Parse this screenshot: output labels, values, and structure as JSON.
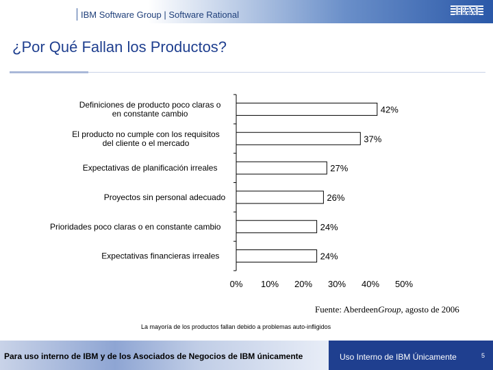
{
  "header": {
    "text": "IBM Software Group | Software Rational",
    "logo": "IBM"
  },
  "slide": {
    "title": "¿Por Qué Fallan los Productos?"
  },
  "chart_data": {
    "type": "bar",
    "orientation": "horizontal",
    "categories": [
      "Definiciones de producto poco claras o en constante cambio",
      "El producto no cumple con los requisitos del cliente o el mercado",
      "Expectativas de planificación irreales",
      "Proyectos sin personal adecuado",
      "Prioridades poco claras o en constante cambio",
      "Expectativas financieras irreales"
    ],
    "category_lines": [
      [
        "Definiciones de producto poco claras o",
        "en constante cambio"
      ],
      [
        "El producto no cumple con los requisitos",
        "del cliente o el mercado"
      ],
      [
        "Expectativas de planificación irreales"
      ],
      [
        "Proyectos sin personal adecuado"
      ],
      [
        "Prioridades poco claras o en constante cambio"
      ],
      [
        "Expectativas financieras irreales"
      ]
    ],
    "values": [
      42,
      37,
      27,
      26,
      24,
      24
    ],
    "value_labels": [
      "42%",
      "37%",
      "27%",
      "26%",
      "24%",
      "24%"
    ],
    "xlim": [
      0,
      50
    ],
    "xticks": [
      0,
      10,
      20,
      30,
      40,
      50
    ],
    "xtick_labels": [
      "0%",
      "10%",
      "20%",
      "30%",
      "40%",
      "50%"
    ],
    "grid": false,
    "bar_color": "#ffffff",
    "bar_edge_color": "#000000"
  },
  "source": {
    "prefix": "Fuente: Aberdeen",
    "brand": "Group",
    "suffix": ", agosto de 2006"
  },
  "note": "La mayoría de los productos fallan debido a problemas auto-infligidos",
  "footer": {
    "left": "Para uso interno de IBM y de los Asociados de Negocios de IBM únicamente",
    "right": "Uso Interno de IBM Únicamente",
    "page": "5"
  }
}
